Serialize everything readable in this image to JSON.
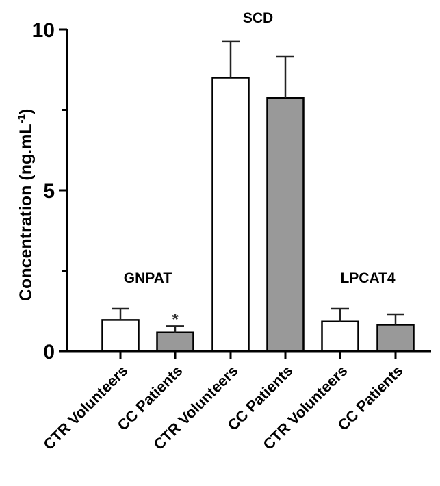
{
  "chart_data": {
    "type": "bar",
    "ylabel": "Concentration (ng.mL",
    "ylabel_sup": "-1",
    "ylabel_close": ")",
    "ylim": [
      0,
      10
    ],
    "yticks": [
      "0",
      "5",
      "10"
    ],
    "grid": false,
    "categories": [
      "CTR Volunteers",
      "CC Patients",
      "CTR Volunteers",
      "CC Patients",
      "CTR Volunteers",
      "CC Patients"
    ],
    "values": [
      0.97,
      0.58,
      8.5,
      7.87,
      0.92,
      0.82
    ],
    "errors": [
      0.35,
      0.2,
      1.12,
      1.28,
      0.4,
      0.33
    ],
    "colors": [
      "#ffffff",
      "#999999",
      "#ffffff",
      "#999999",
      "#ffffff",
      "#999999"
    ],
    "groups": [
      {
        "label": "GNPAT",
        "bars": [
          0,
          1
        ]
      },
      {
        "label": "SCD",
        "bars": [
          2,
          3
        ]
      },
      {
        "label": "LPCAT4",
        "bars": [
          4,
          5
        ]
      }
    ],
    "annotations": [
      {
        "bar": 1,
        "text": "*"
      }
    ]
  }
}
